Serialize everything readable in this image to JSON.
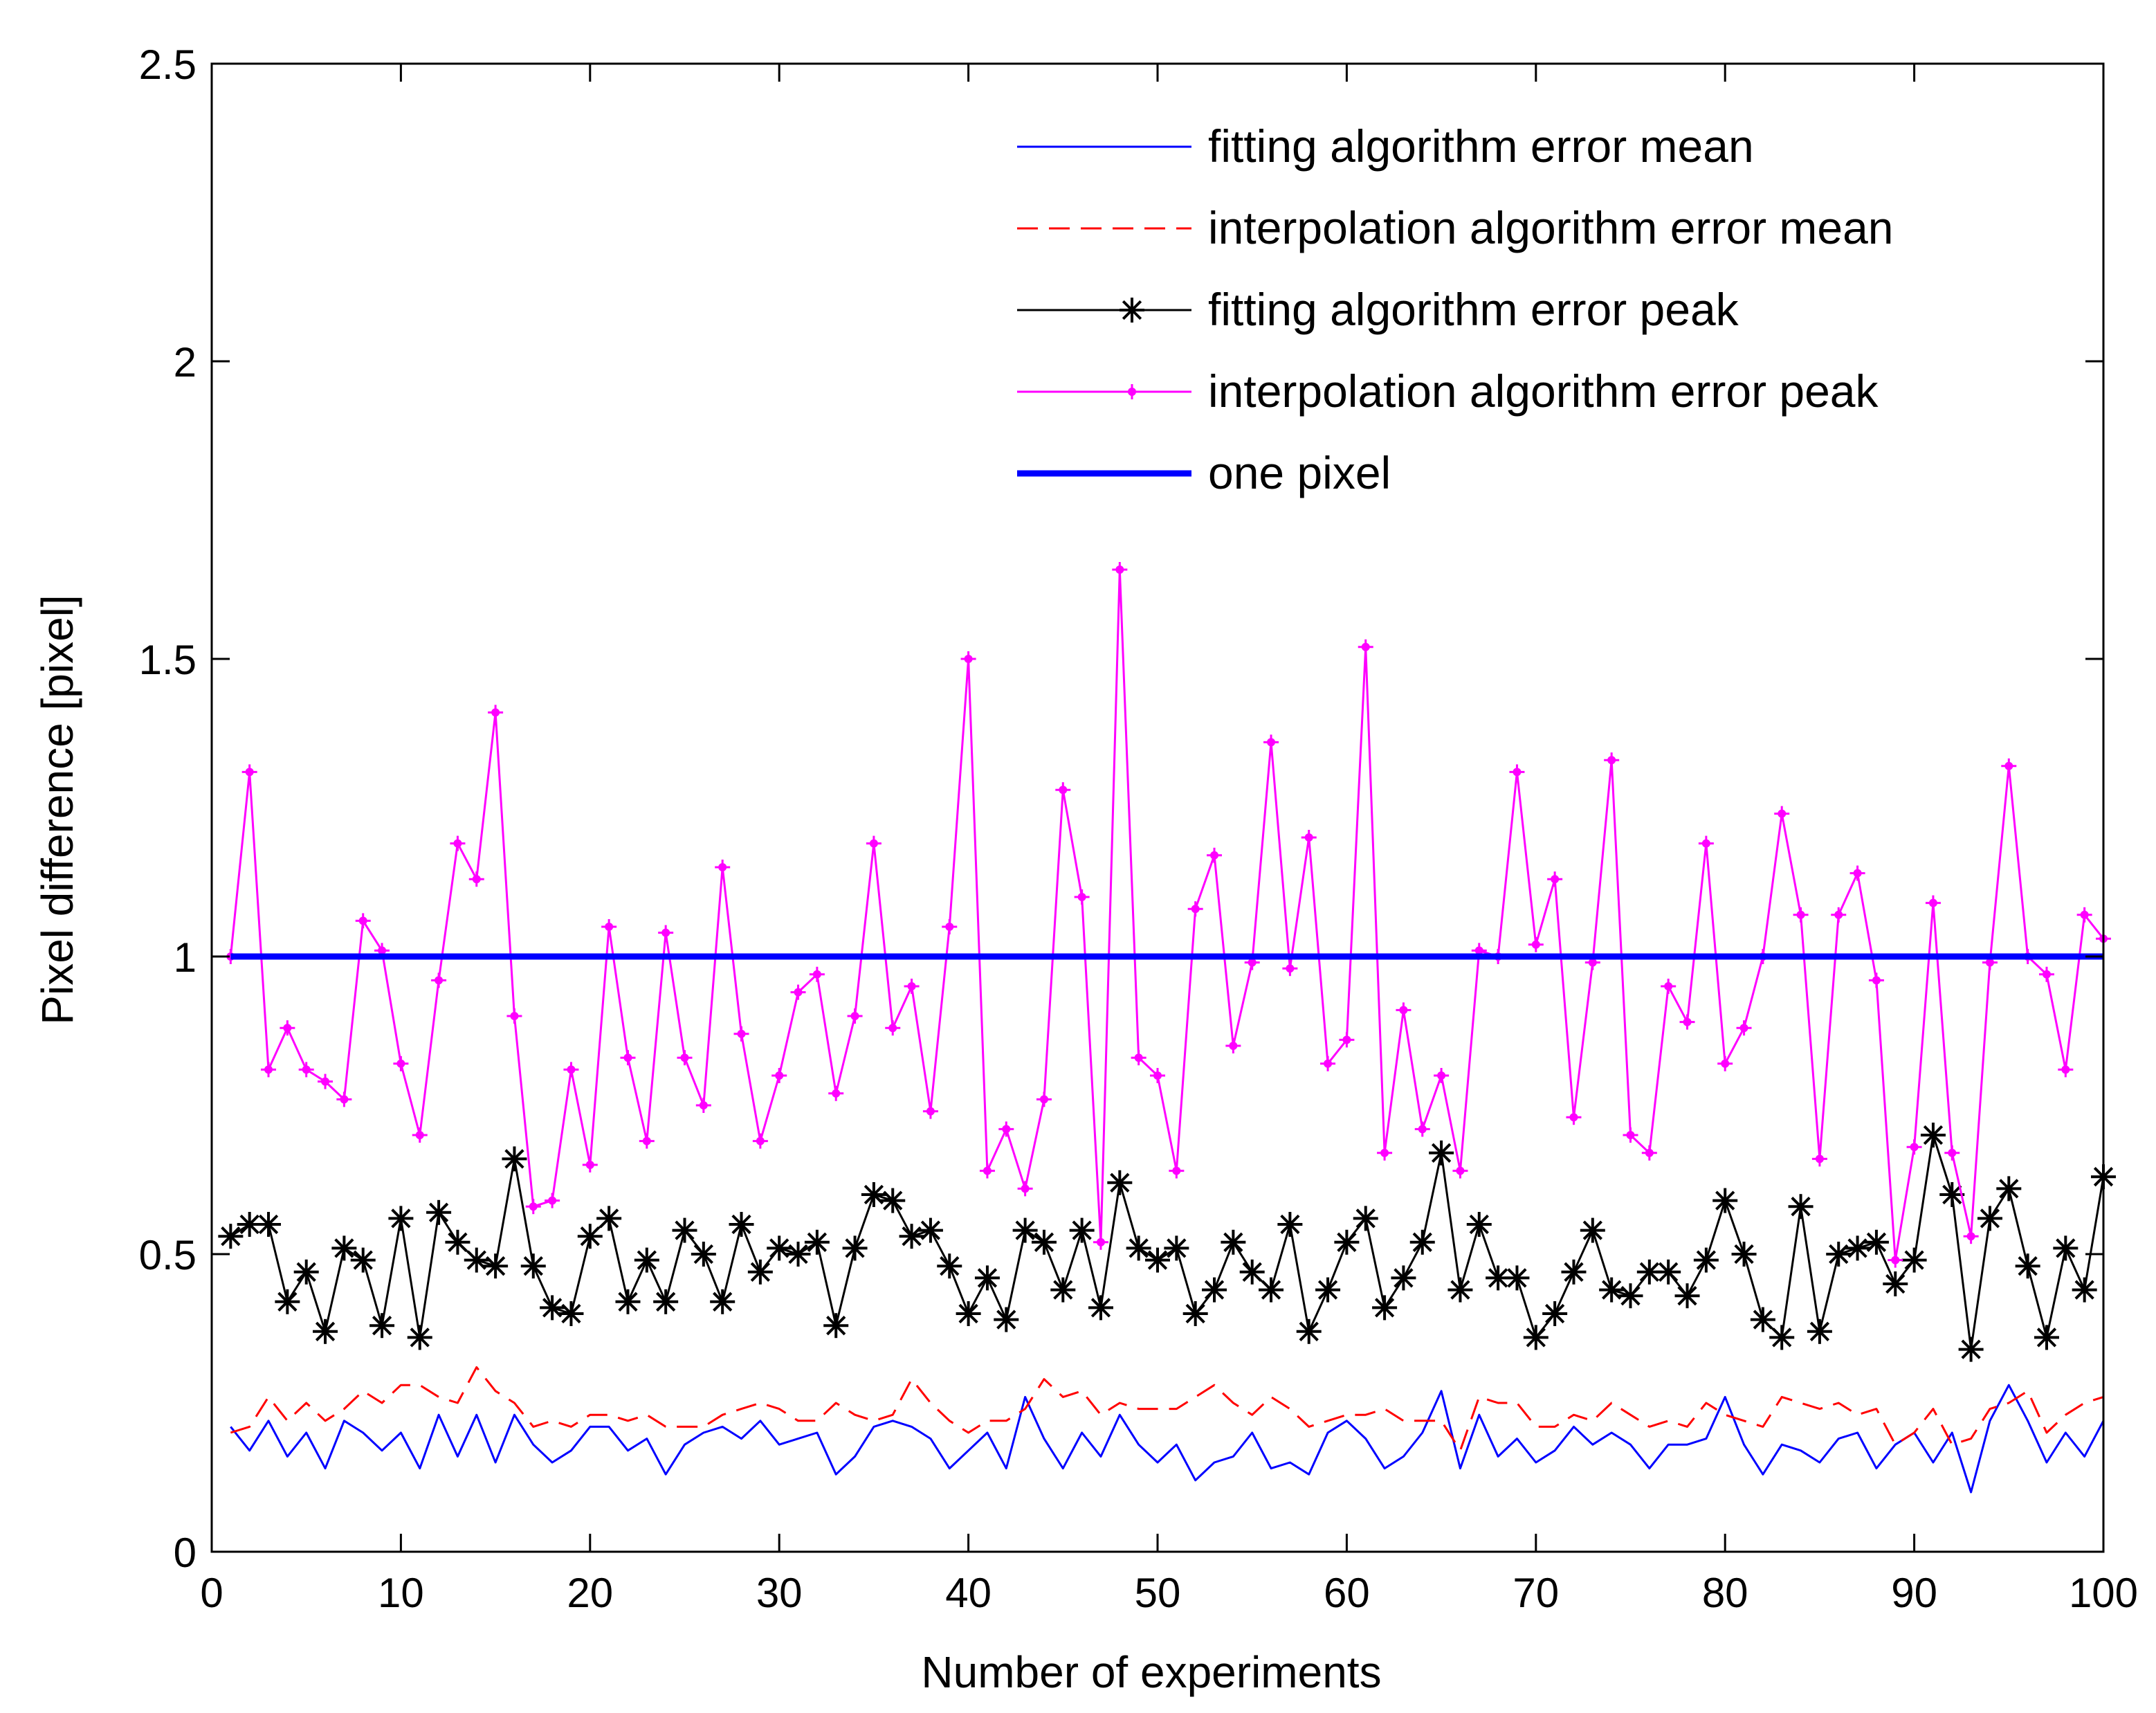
{
  "chart_data": {
    "type": "line",
    "title": "",
    "xlabel": "Number of experiments",
    "ylabel": "Pixel difference [pixel]",
    "xlim": [
      0,
      100
    ],
    "ylim": [
      0,
      2.5
    ],
    "xticks": [
      0,
      10,
      20,
      30,
      40,
      50,
      60,
      70,
      80,
      90,
      100
    ],
    "yticks": [
      0,
      0.5,
      1,
      1.5,
      2,
      2.5
    ],
    "xtick_labels": [
      "0",
      "10",
      "20",
      "30",
      "40",
      "50",
      "60",
      "70",
      "80",
      "90",
      "100"
    ],
    "ytick_labels": [
      "0",
      "0.5",
      "1",
      "1.5",
      "2",
      "2.5"
    ],
    "grid": false,
    "legend_position": "top-right",
    "x": [
      1,
      2,
      3,
      4,
      5,
      6,
      7,
      8,
      9,
      10,
      11,
      12,
      13,
      14,
      15,
      16,
      17,
      18,
      19,
      20,
      21,
      22,
      23,
      24,
      25,
      26,
      27,
      28,
      29,
      30,
      31,
      32,
      33,
      34,
      35,
      36,
      37,
      38,
      39,
      40,
      41,
      42,
      43,
      44,
      45,
      46,
      47,
      48,
      49,
      50,
      51,
      52,
      53,
      54,
      55,
      56,
      57,
      58,
      59,
      60,
      61,
      62,
      63,
      64,
      65,
      66,
      67,
      68,
      69,
      70,
      71,
      72,
      73,
      74,
      75,
      76,
      77,
      78,
      79,
      80,
      81,
      82,
      83,
      84,
      85,
      86,
      87,
      88,
      89,
      90,
      91,
      92,
      93,
      94,
      95,
      96,
      97,
      98,
      99,
      100
    ],
    "series": [
      {
        "name": "fitting algorithm error mean",
        "color": "#0000ff",
        "style": "solid",
        "marker": "none",
        "values": [
          0.21,
          0.17,
          0.22,
          0.16,
          0.2,
          0.14,
          0.22,
          0.2,
          0.17,
          0.2,
          0.14,
          0.23,
          0.16,
          0.23,
          0.15,
          0.23,
          0.18,
          0.15,
          0.17,
          0.21,
          0.21,
          0.17,
          0.19,
          0.13,
          0.18,
          0.2,
          0.21,
          0.19,
          0.22,
          0.18,
          0.19,
          0.2,
          0.13,
          0.16,
          0.21,
          0.22,
          0.21,
          0.19,
          0.14,
          0.17,
          0.2,
          0.14,
          0.26,
          0.19,
          0.14,
          0.2,
          0.16,
          0.23,
          0.18,
          0.15,
          0.18,
          0.12,
          0.15,
          0.16,
          0.2,
          0.14,
          0.15,
          0.13,
          0.2,
          0.22,
          0.19,
          0.14,
          0.16,
          0.2,
          0.27,
          0.14,
          0.23,
          0.16,
          0.19,
          0.15,
          0.17,
          0.21,
          0.18,
          0.2,
          0.18,
          0.14,
          0.18,
          0.18,
          0.19,
          0.26,
          0.18,
          0.13,
          0.18,
          0.17,
          0.15,
          0.19,
          0.2,
          0.14,
          0.18,
          0.2,
          0.15,
          0.2,
          0.1,
          0.22,
          0.28,
          0.22,
          0.15,
          0.2,
          0.16,
          0.22
        ]
      },
      {
        "name": "interpolation algorithm error mean",
        "color": "#ff0000",
        "style": "dashed",
        "marker": "none",
        "values": [
          0.2,
          0.21,
          0.26,
          0.22,
          0.25,
          0.22,
          0.24,
          0.27,
          0.25,
          0.28,
          0.28,
          0.26,
          0.25,
          0.31,
          0.27,
          0.25,
          0.21,
          0.22,
          0.21,
          0.23,
          0.23,
          0.22,
          0.23,
          0.21,
          0.21,
          0.21,
          0.23,
          0.24,
          0.25,
          0.24,
          0.22,
          0.22,
          0.25,
          0.23,
          0.22,
          0.23,
          0.29,
          0.25,
          0.22,
          0.2,
          0.22,
          0.22,
          0.24,
          0.29,
          0.26,
          0.27,
          0.23,
          0.25,
          0.24,
          0.24,
          0.24,
          0.26,
          0.28,
          0.25,
          0.23,
          0.26,
          0.24,
          0.21,
          0.22,
          0.23,
          0.23,
          0.24,
          0.22,
          0.22,
          0.22,
          0.17,
          0.26,
          0.25,
          0.25,
          0.21,
          0.21,
          0.23,
          0.22,
          0.25,
          0.23,
          0.21,
          0.22,
          0.21,
          0.25,
          0.23,
          0.22,
          0.21,
          0.26,
          0.25,
          0.24,
          0.25,
          0.23,
          0.24,
          0.18,
          0.2,
          0.24,
          0.18,
          0.19,
          0.24,
          0.25,
          0.27,
          0.2,
          0.23,
          0.25,
          0.26
        ]
      },
      {
        "name": "fitting algorithm error peak",
        "color": "#000000",
        "style": "solid",
        "marker": "asterisk",
        "values": [
          0.53,
          0.55,
          0.55,
          0.42,
          0.47,
          0.37,
          0.51,
          0.49,
          0.38,
          0.56,
          0.36,
          0.57,
          0.52,
          0.49,
          0.48,
          0.66,
          0.48,
          0.41,
          0.4,
          0.53,
          0.56,
          0.42,
          0.49,
          0.42,
          0.54,
          0.5,
          0.42,
          0.55,
          0.47,
          0.51,
          0.5,
          0.52,
          0.38,
          0.51,
          0.6,
          0.59,
          0.53,
          0.54,
          0.48,
          0.4,
          0.46,
          0.39,
          0.54,
          0.52,
          0.44,
          0.54,
          0.41,
          0.62,
          0.51,
          0.49,
          0.51,
          0.4,
          0.44,
          0.52,
          0.47,
          0.44,
          0.55,
          0.37,
          0.44,
          0.52,
          0.56,
          0.41,
          0.46,
          0.52,
          0.67,
          0.44,
          0.55,
          0.46,
          0.46,
          0.36,
          0.4,
          0.47,
          0.54,
          0.44,
          0.43,
          0.47,
          0.47,
          0.43,
          0.49,
          0.59,
          0.5,
          0.39,
          0.36,
          0.58,
          0.37,
          0.5,
          0.51,
          0.52,
          0.45,
          0.49,
          0.7,
          0.6,
          0.34,
          0.56,
          0.61,
          0.48,
          0.36,
          0.51,
          0.44,
          0.63
        ]
      },
      {
        "name": "interpolation algorithm error peak",
        "color": "#ff00ff",
        "style": "solid",
        "marker": "dot",
        "values": [
          1.0,
          1.31,
          0.81,
          0.88,
          0.81,
          0.79,
          0.76,
          1.06,
          1.01,
          0.82,
          0.7,
          0.96,
          1.19,
          1.13,
          1.41,
          0.9,
          0.58,
          0.59,
          0.81,
          0.65,
          1.05,
          0.83,
          0.69,
          1.04,
          0.83,
          0.75,
          1.15,
          0.87,
          0.69,
          0.8,
          0.94,
          0.97,
          0.77,
          0.9,
          1.19,
          0.88,
          0.95,
          0.74,
          1.05,
          1.5,
          0.64,
          0.71,
          0.61,
          0.76,
          1.28,
          1.1,
          0.52,
          1.65,
          0.83,
          0.8,
          0.64,
          1.08,
          1.17,
          0.85,
          0.99,
          1.36,
          0.98,
          1.2,
          0.82,
          0.86,
          1.52,
          0.67,
          0.91,
          0.71,
          0.8,
          0.64,
          1.01,
          1.0,
          1.31,
          1.02,
          1.13,
          0.73,
          0.99,
          1.33,
          0.7,
          0.67,
          0.95,
          0.89,
          1.19,
          0.82,
          0.88,
          1.0,
          1.24,
          1.07,
          0.66,
          1.07,
          1.14,
          0.96,
          0.49,
          0.68,
          1.09,
          0.67,
          0.53,
          0.99,
          1.32,
          1.0,
          0.97,
          0.81,
          1.07,
          1.03
        ]
      },
      {
        "name": "one pixel",
        "color": "#0000ff",
        "style": "solid-thick",
        "marker": "none",
        "x": [
          1,
          100
        ],
        "values": [
          1.0,
          1.0
        ]
      }
    ]
  }
}
